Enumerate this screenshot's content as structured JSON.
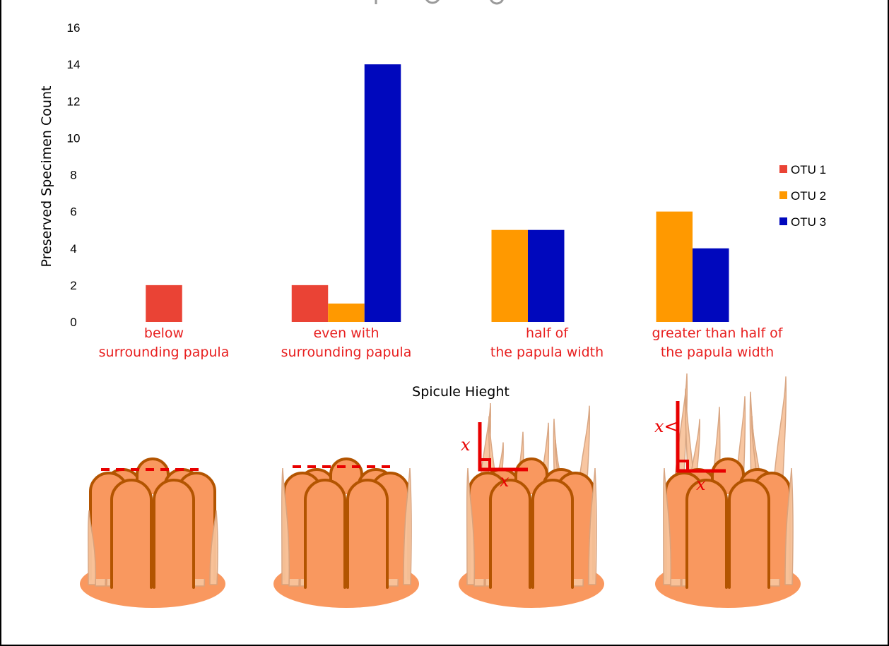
{
  "chart_data": {
    "type": "bar",
    "title": "",
    "xlabel": "Spicule Hieght",
    "ylabel": "Preserved  Specimen Count",
    "ylim": [
      0,
      16
    ],
    "yticks": [
      0,
      2,
      4,
      6,
      8,
      10,
      12,
      14,
      16
    ],
    "categories": [
      [
        "below",
        "surrounding papula"
      ],
      [
        "even with",
        "surrounding papula"
      ],
      [
        "half of",
        "the papula width"
      ],
      [
        "greater than half of",
        "the papula width"
      ]
    ],
    "series": [
      {
        "name": "OTU 1",
        "color": "#ea4335",
        "values": [
          2,
          2,
          0,
          0
        ]
      },
      {
        "name": "OTU 2",
        "color": "#ff9900",
        "values": [
          0,
          1,
          5,
          6
        ]
      },
      {
        "name": "OTU 3",
        "color": "#0008bd",
        "values": [
          0,
          14,
          5,
          4
        ]
      }
    ],
    "legend_position": "right",
    "grid": false,
    "category_label_color": "#e82020"
  },
  "illustrations": {
    "labels": [
      {
        "text": "x",
        "panel": 3
      },
      {
        "text": "x",
        "panel": 3
      },
      {
        "text": "x<",
        "panel": 4
      },
      {
        "text": "x",
        "panel": 4
      }
    ],
    "colors": {
      "body": "#f9985f",
      "outline": "#b35400",
      "spicule": "#f8c49c",
      "guide": "#e80000"
    }
  }
}
